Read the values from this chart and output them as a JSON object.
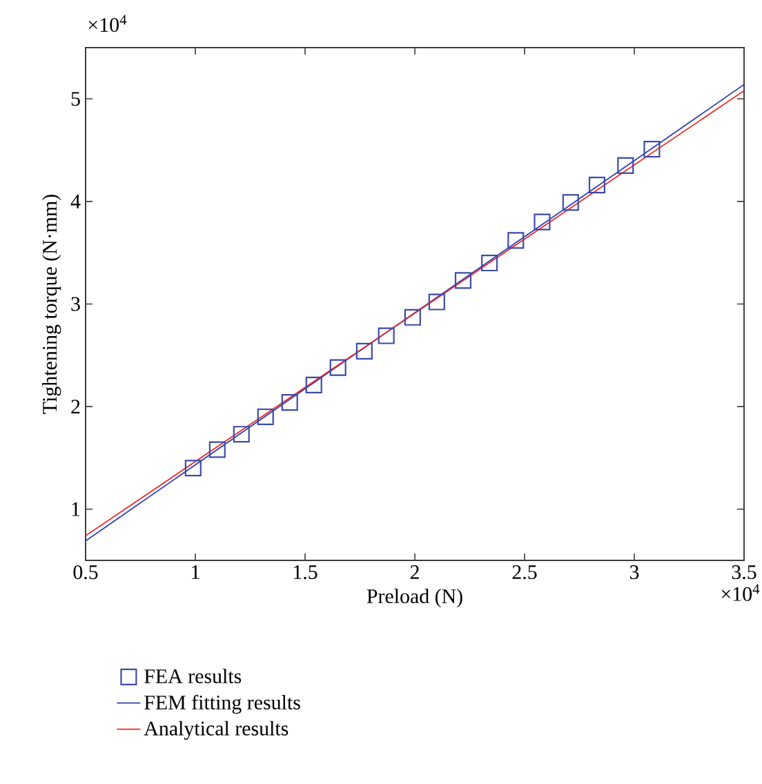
{
  "chart_data": {
    "type": "scatter",
    "xlabel": "Preload (N)",
    "ylabel": "Tightening torque (N·mm)",
    "xlim": [
      0.5,
      3.5
    ],
    "ylim": [
      0.5,
      5.5
    ],
    "xticks": [
      0.5,
      1,
      1.5,
      2,
      2.5,
      3,
      3.5
    ],
    "yticks": [
      1,
      2,
      3,
      4,
      5
    ],
    "annotations": [
      "×10$^{4}$",
      "×10$^{4}$"
    ],
    "legend": "bottom",
    "grid": false,
    "series": [
      {
        "name": "FEA results",
        "marker": "square",
        "color": "#3b4ba8",
        "x": [
          0.99,
          1.1,
          1.21,
          1.32,
          1.43,
          1.54,
          1.65,
          1.77,
          1.87,
          1.99,
          2.1,
          2.22,
          2.34,
          2.46,
          2.58,
          2.71,
          2.83,
          2.96,
          3.08
        ],
        "values": [
          1.4,
          1.58,
          1.73,
          1.9,
          2.04,
          2.21,
          2.38,
          2.54,
          2.69,
          2.87,
          3.02,
          3.23,
          3.4,
          3.62,
          3.8,
          3.99,
          4.16,
          4.35,
          4.51
        ]
      },
      {
        "name": "FEM fitting results",
        "type": "line",
        "marker": "none",
        "color": "#2e3fb0",
        "x": [
          0.5,
          3.5
        ],
        "values": [
          0.69,
          5.14
        ]
      },
      {
        "name": "Analytical results",
        "type": "line",
        "marker": "none",
        "color": "#ee2a2a",
        "x": [
          0.5,
          3.5
        ],
        "values": [
          0.74,
          5.08
        ]
      }
    ]
  }
}
